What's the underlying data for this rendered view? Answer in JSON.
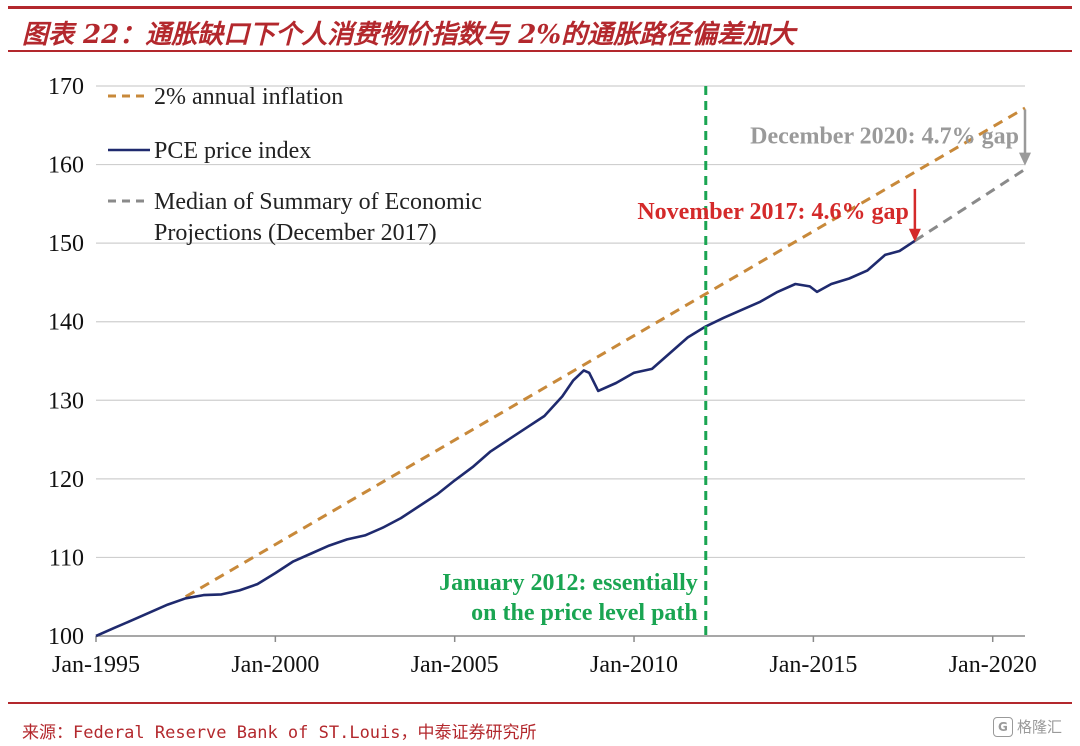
{
  "figure": {
    "title": "图表 22：通胀缺口下个人消费物价指数与 2%的通胀路径偏差加大",
    "source": "来源：Federal Reserve Bank of ST.Louis，中泰证券研究所",
    "watermark": "格隆汇",
    "watermark_logo": "G"
  },
  "colors": {
    "brand_red": "#b3282d",
    "inflation_path": "#c8893a",
    "pce": "#1f2a6e",
    "sep_median": "#8a8a8a",
    "jan2012_marker": "#1aa552",
    "nov2017_annotation": "#d42a2a",
    "dec2020_annotation": "#9a9a9a",
    "grid": "#cfcfcf"
  },
  "chart_data": {
    "type": "line",
    "title": "",
    "xlabel": "",
    "ylabel": "",
    "x_unit": "year",
    "xlim": [
      1995.0,
      2020.9
    ],
    "ylim": [
      100,
      170
    ],
    "y_ticks": [
      100,
      110,
      120,
      130,
      140,
      150,
      160,
      170
    ],
    "x_ticks": [
      {
        "value": 1995,
        "label": "Jan-1995"
      },
      {
        "value": 2000,
        "label": "Jan-2000"
      },
      {
        "value": 2005,
        "label": "Jan-2005"
      },
      {
        "value": 2010,
        "label": "Jan-2010"
      },
      {
        "value": 2015,
        "label": "Jan-2015"
      },
      {
        "value": 2020,
        "label": "Jan-2020"
      }
    ],
    "grid": "horizontal",
    "legend_position": "top-left",
    "series": [
      {
        "name": "2% annual inflation",
        "style": "dashed",
        "color": "#c8893a",
        "x": [
          1997.5,
          2020.9
        ],
        "y": [
          105.0,
          167.2
        ]
      },
      {
        "name": "PCE price index",
        "style": "solid",
        "color": "#1f2a6e",
        "x": [
          1995.0,
          1995.5,
          1996.0,
          1996.5,
          1997.0,
          1997.5,
          1998.0,
          1998.5,
          1999.0,
          1999.5,
          2000.0,
          2000.5,
          2001.0,
          2001.5,
          2002.0,
          2002.5,
          2003.0,
          2003.5,
          2004.0,
          2004.5,
          2005.0,
          2005.5,
          2006.0,
          2006.5,
          2007.0,
          2007.5,
          2008.0,
          2008.3,
          2008.6,
          2008.75,
          2009.0,
          2009.5,
          2010.0,
          2010.5,
          2011.0,
          2011.5,
          2012.0,
          2012.5,
          2013.0,
          2013.5,
          2014.0,
          2014.5,
          2014.9,
          2015.1,
          2015.5,
          2016.0,
          2016.5,
          2017.0,
          2017.4,
          2017.83
        ],
        "y": [
          100.0,
          101.0,
          102.0,
          103.0,
          104.0,
          104.8,
          105.2,
          105.3,
          105.8,
          106.6,
          108.0,
          109.5,
          110.5,
          111.5,
          112.3,
          112.8,
          113.8,
          115.0,
          116.5,
          118.0,
          119.8,
          121.5,
          123.5,
          125.0,
          126.5,
          128.0,
          130.5,
          132.5,
          133.8,
          133.5,
          131.2,
          132.2,
          133.5,
          134.0,
          136.0,
          138.0,
          139.4,
          140.5,
          141.5,
          142.5,
          143.8,
          144.8,
          144.5,
          143.8,
          144.8,
          145.5,
          146.5,
          148.5,
          149.0,
          150.3
        ]
      },
      {
        "name": "Median of Summary of Economic Projections (December 2017)",
        "legend_lines": [
          "Median of Summary of Economic",
          "Projections (December 2017)"
        ],
        "style": "dashed",
        "color": "#8a8a8a",
        "x": [
          2017.83,
          2020.9
        ],
        "y": [
          150.3,
          159.4
        ]
      }
    ],
    "annotations": [
      {
        "id": "jan2012",
        "x": 2012.0,
        "lines": [
          "January 2012: essentially",
          "on the price level path"
        ],
        "color": "#1aa552"
      },
      {
        "id": "nov2017",
        "x": 2017.83,
        "text": "November 2017: 4.6% gap",
        "y_from": 156.9,
        "y_to": 150.3,
        "color": "#d42a2a"
      },
      {
        "id": "dec2020",
        "x": 2020.9,
        "text": "December 2020: 4.7% gap",
        "y_from": 167.0,
        "y_to": 160.0,
        "color": "#9a9a9a"
      }
    ]
  }
}
